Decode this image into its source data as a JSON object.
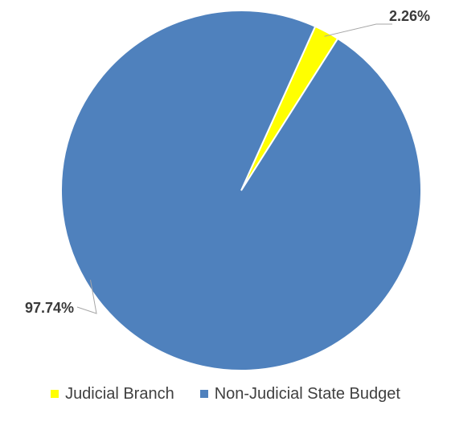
{
  "chart_data": {
    "type": "pie",
    "title": "",
    "slices": [
      {
        "name": "Judicial Branch",
        "value": 2.26,
        "label": "2.26%",
        "color": "#ffff00"
      },
      {
        "name": "Non-Judicial State Budget",
        "value": 97.74,
        "label": "97.74%",
        "color": "#4f81bd"
      }
    ],
    "legend": {
      "position": "bottom"
    }
  }
}
